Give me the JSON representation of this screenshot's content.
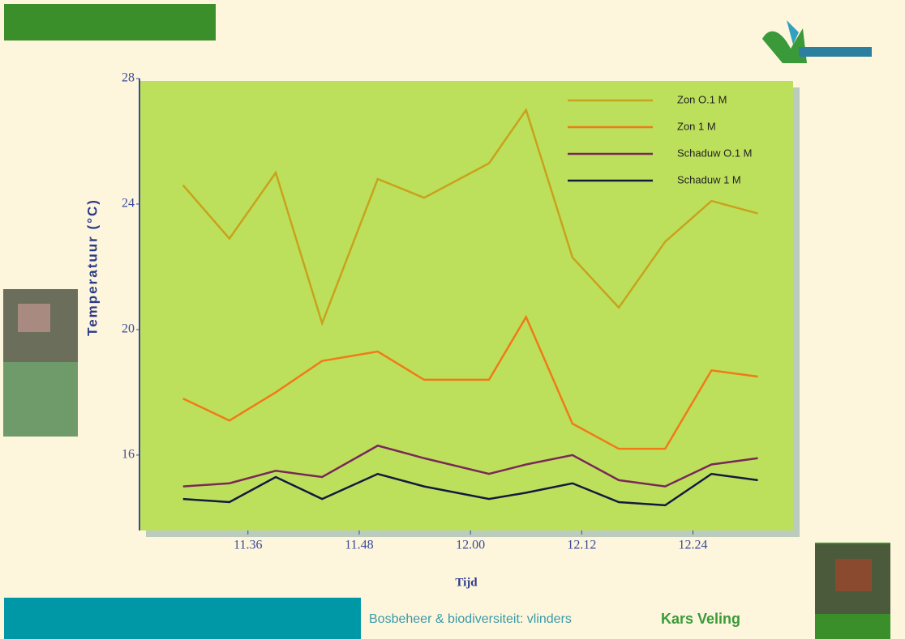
{
  "chart_data": {
    "type": "line",
    "y_label": "Temperatuur (°C)",
    "x_label": "Tijd",
    "x": [
      29,
      34,
      39,
      44,
      50,
      55,
      62,
      66,
      71,
      76,
      81,
      86,
      91
    ],
    "xlim": [
      24.3,
      94.8
    ],
    "xticks": [
      {
        "value": 36,
        "label": "11.36"
      },
      {
        "value": 48,
        "label": "11.48"
      },
      {
        "value": 60,
        "label": "12.00"
      },
      {
        "value": 72,
        "label": "12.12"
      },
      {
        "value": 84,
        "label": "12.24"
      }
    ],
    "ylim": [
      13.7,
      28
    ],
    "yticks": [
      16,
      20,
      24,
      28
    ],
    "legend": "upper right",
    "series": [
      {
        "name": "Zon O.1 M",
        "color": "#c9a21c",
        "values": [
          24.6,
          22.9,
          25.0,
          20.2,
          24.8,
          24.2,
          25.3,
          27.0,
          22.3,
          20.7,
          22.8,
          24.1,
          23.7
        ]
      },
      {
        "name": "Zon 1 M",
        "color": "#f07a18",
        "values": [
          17.8,
          17.1,
          18.0,
          19.0,
          19.3,
          18.4,
          18.4,
          20.4,
          17.0,
          16.2,
          16.2,
          18.7,
          18.5
        ]
      },
      {
        "name": "Schaduw O.1 M",
        "color": "#7a2858",
        "values": [
          15.0,
          15.1,
          15.5,
          15.3,
          16.3,
          15.9,
          15.4,
          15.7,
          16.0,
          15.2,
          15.0,
          15.7,
          15.9
        ]
      },
      {
        "name": "Schaduw 1 M",
        "color": "#16183e",
        "values": [
          14.6,
          14.5,
          15.3,
          14.6,
          15.4,
          15.0,
          14.6,
          14.8,
          15.1,
          14.5,
          14.4,
          15.4,
          15.2
        ]
      }
    ]
  },
  "footer": {
    "subject": "Bosbeheer & biodiversiteit: vlinders",
    "author": "Kars Veling"
  }
}
